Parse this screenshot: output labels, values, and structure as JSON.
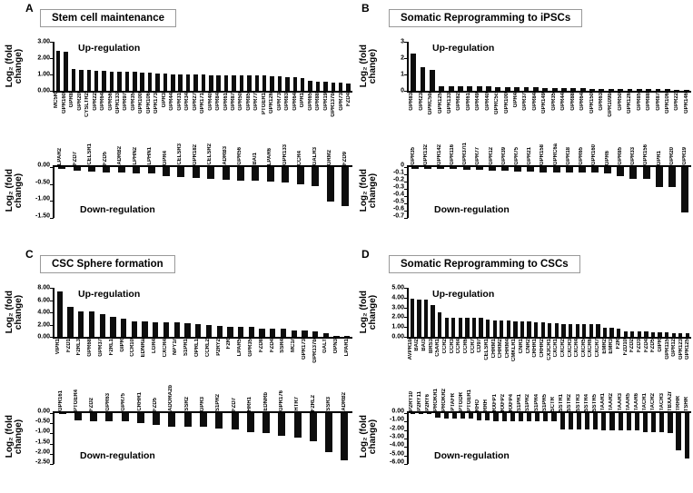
{
  "axis_label": "Log₂ (fold\nchange)",
  "panels": [
    {
      "letter": "A",
      "title": "Stem cell maintenance"
    },
    {
      "letter": "B",
      "title": "Somatic Reprogramming to iPSCs"
    },
    {
      "letter": "C",
      "title": "CSC Sphere formation"
    },
    {
      "letter": "D",
      "title": "Somatic Reprogramming to CSCs"
    }
  ],
  "chart_data": [
    {
      "id": "a-up",
      "panel": "A",
      "type": "bar",
      "direction": "up",
      "annotation": "Up-regulation",
      "ylabel": "Log₂ (fold change)",
      "y_ticks": [
        "3.00",
        "2.00",
        "1.00",
        "0.00"
      ],
      "ylim": [
        0,
        3
      ],
      "categories": [
        "MC5R",
        "GPR160",
        "GPR8",
        "GPR20",
        "CYSLTR2",
        "GPR22",
        "GPR64",
        "GPR56",
        "GPR133",
        "GPR97",
        "GPR35",
        "GPR100",
        "GPR106",
        "GPR173",
        "GPR3",
        "GPR44",
        "GPR31",
        "GPR34",
        "GPR27",
        "GPR171",
        "GPR40",
        "GPR84",
        "GPR61",
        "GPR87",
        "GPR50",
        "GPR85",
        "GPR77",
        "PTGER1",
        "GPR126",
        "GPR73",
        "GPR83",
        "GPR64",
        "GPR1",
        "GPR65",
        "GPR88",
        "GPR19",
        "GPR137b",
        "GPR73",
        "FZD4"
      ],
      "values": [
        2.45,
        2.4,
        1.35,
        1.3,
        1.27,
        1.22,
        1.2,
        1.18,
        1.17,
        1.16,
        1.15,
        1.13,
        1.1,
        1.08,
        1.03,
        1.02,
        1.01,
        1.0,
        0.99,
        0.98,
        0.97,
        0.97,
        0.96,
        0.96,
        0.95,
        0.94,
        0.93,
        0.92,
        0.91,
        0.9,
        0.86,
        0.82,
        0.78,
        0.62,
        0.57,
        0.56,
        0.52,
        0.48,
        0.42
      ]
    },
    {
      "id": "a-down",
      "panel": "A",
      "type": "bar",
      "direction": "down",
      "annotation": "Down-regulation",
      "ylabel": "Log₂ (fold change)",
      "y_ticks": [
        "0.00",
        "-0.50",
        "-1.00",
        "-1.50"
      ],
      "ylim": [
        -1.5,
        0
      ],
      "categories": [
        "LPAR2",
        "FZD7",
        "CELSR1",
        "FZD5",
        "ADRB2",
        "LPHN2",
        "LPHN1",
        "GPR4",
        "CELSR3",
        "GPR182",
        "CELSR2",
        "ADRB3",
        "GPR56",
        "BAI1",
        "LPAR6",
        "GPR133",
        "CCR4",
        "GALR3",
        "GRM2",
        "FZD9"
      ],
      "values": [
        -0.05,
        -0.1,
        -0.13,
        -0.15,
        -0.16,
        -0.18,
        -0.19,
        -0.26,
        -0.3,
        -0.33,
        -0.35,
        -0.38,
        -0.4,
        -0.4,
        -0.43,
        -0.45,
        -0.5,
        -0.57,
        -1.02,
        -1.15
      ]
    },
    {
      "id": "b-up",
      "panel": "B",
      "type": "bar",
      "direction": "up",
      "annotation": "Up-regulation",
      "ylabel": "Log₂ (fold change)",
      "y_ticks": [
        "3",
        "2",
        "1",
        "0"
      ],
      "ylim": [
        0,
        3
      ],
      "categories": [
        "GPR83",
        "GPR23",
        "GPRC5b",
        "GPR125",
        "GPR133",
        "GPR82",
        "GPR61",
        "GPR49",
        "GPR40",
        "GPRC5c",
        "GPR100",
        "GPR4",
        "GPR37",
        "GPR84",
        "GPR149",
        "GPR35",
        "GPR44",
        "GPR88",
        "GPR64",
        "GPR150",
        "GPR63",
        "GPR109b",
        "GPR50",
        "GPR126",
        "GPR85",
        "GPR88",
        "GPR87",
        "GPR106",
        "GPR22",
        "GPR146"
      ],
      "values": [
        2.3,
        1.45,
        1.3,
        0.3,
        0.3,
        0.29,
        0.28,
        0.27,
        0.25,
        0.24,
        0.23,
        0.22,
        0.21,
        0.2,
        0.19,
        0.19,
        0.18,
        0.18,
        0.15,
        0.13,
        0.12,
        0.12,
        0.11,
        0.11,
        0.1,
        0.1,
        0.09,
        0.09,
        0.08,
        0.08
      ]
    },
    {
      "id": "b-down",
      "panel": "B",
      "type": "bar",
      "direction": "down",
      "annotation": "Down-regulation",
      "ylabel": "Log₂ (fold change)",
      "y_ticks": [
        "0",
        "-0.1",
        "-0.2",
        "-0.3",
        "-0.4",
        "-0.5",
        "-0.6",
        "-0.7"
      ],
      "ylim": [
        -0.7,
        0
      ],
      "categories": [
        "GPR35",
        "GPR132",
        "GPR142",
        "GPR116",
        "GPR37l1",
        "GPR77",
        "GPR12",
        "GPR39",
        "GPR75",
        "GPR21",
        "GPR158",
        "GPRC6a",
        "GPR18",
        "GPR65",
        "GPR160",
        "GPR6",
        "GPR85",
        "GPR33",
        "GPR156",
        "GPR1",
        "GPR20",
        "GPR19"
      ],
      "values": [
        -0.02,
        -0.02,
        -0.03,
        -0.03,
        -0.04,
        -0.04,
        -0.05,
        -0.05,
        -0.06,
        -0.06,
        -0.07,
        -0.07,
        -0.08,
        -0.08,
        -0.08,
        -0.09,
        -0.13,
        -0.16,
        -0.16,
        -0.27,
        -0.28,
        -0.62
      ]
    },
    {
      "id": "c-up",
      "panel": "C",
      "type": "bar",
      "direction": "up",
      "annotation": "Up-regulation",
      "ylabel": "Log₂ (fold change)",
      "y_ticks": [
        "8.00",
        "6.00",
        "4.00",
        "2.00",
        "0.00"
      ],
      "ylim": [
        0,
        8
      ],
      "categories": [
        "VIPR1",
        "FZD1",
        "F2RL3",
        "GPR68",
        "GPR37",
        "F2RL1",
        "GIPR",
        "CCR10",
        "EDNRa",
        "LGR4",
        "CXCR4",
        "NPY1r",
        "S1PR1",
        "OPRL1",
        "CCRL2",
        "P2RY2",
        "F2R",
        "LPAR5",
        "GPR35",
        "FZD8",
        "FZD4",
        "SSR4",
        "MC1r",
        "GPR173",
        "GPR137b",
        "GALT",
        "OPN3",
        "LPAR1"
      ],
      "values": [
        7.4,
        4.9,
        4.2,
        4.1,
        3.75,
        3.2,
        2.9,
        2.5,
        2.45,
        2.4,
        2.35,
        2.3,
        2.25,
        2.1,
        1.9,
        1.8,
        1.65,
        1.65,
        1.6,
        1.4,
        1.35,
        1.3,
        1.1,
        1.05,
        0.95,
        0.55,
        0.15,
        0.1
      ]
    },
    {
      "id": "c-down",
      "panel": "C",
      "type": "bar",
      "direction": "down",
      "annotation": "Down-regulation",
      "ylabel": "Log₂ (fold change)",
      "y_ticks": [
        "0.00",
        "-0.50",
        "-1.00",
        "-1.50",
        "-2.00",
        "-2.50"
      ],
      "ylim": [
        -2.5,
        0
      ],
      "categories": [
        "GPR161",
        "PTGER4",
        "FZD2",
        "GPR63",
        "GPR75",
        "CRHR1",
        "FZD5",
        "ADORA2b",
        "SSR2",
        "GPR3",
        "S1PR2",
        "FZD7",
        "HRH1",
        "EDNRb",
        "GPR176",
        "HTR7",
        "F2RL2",
        "SSR3",
        "ADRB2"
      ],
      "values": [
        -0.05,
        -0.35,
        -0.38,
        -0.38,
        -0.42,
        -0.5,
        -0.6,
        -0.65,
        -0.65,
        -0.68,
        -0.75,
        -0.8,
        -0.95,
        -1.0,
        -1.12,
        -1.2,
        -1.4,
        -1.9,
        -2.3
      ]
    },
    {
      "id": "d-up",
      "panel": "D",
      "type": "bar",
      "direction": "up",
      "annotation": "Up-regulation",
      "ylabel": "Log₂ (fold change)",
      "y_ticks": [
        "5.00",
        "4.00",
        "3.00",
        "2.00",
        "1.00",
        "0.00"
      ],
      "ylim": [
        0,
        5
      ],
      "categories": [
        "AVPR1b",
        "BAI2",
        "BAI3",
        "BRS3",
        "C5AR1",
        "CCR2",
        "CCR3",
        "CCR4",
        "CCR6",
        "CCR7",
        "CD97",
        "CELSR1",
        "CHRM1",
        "CHRM2",
        "CHRM4",
        "CMKLR1",
        "CNR1",
        "CNR2",
        "CRHR1",
        "CRHR2",
        "CX3CR1",
        "CXCR1",
        "CXCR2",
        "CXCR3",
        "CXCR4",
        "CXCR5",
        "CXCR6",
        "CXCR7",
        "EMR2",
        "EMR3",
        "F2R",
        "FZD10",
        "FZD2",
        "FZD3",
        "FZD4",
        "FZD5",
        "GIPR",
        "GPR115",
        "GPR12",
        "GPR123",
        "GPR125"
      ],
      "values": [
        3.9,
        3.75,
        3.75,
        3.2,
        2.5,
        1.95,
        1.95,
        1.92,
        1.95,
        1.95,
        1.9,
        1.8,
        1.7,
        1.7,
        1.7,
        1.6,
        1.55,
        1.55,
        1.45,
        1.45,
        1.35,
        1.35,
        1.32,
        1.32,
        1.3,
        1.3,
        1.3,
        1.3,
        0.92,
        0.9,
        0.85,
        0.55,
        0.55,
        0.55,
        0.55,
        0.5,
        0.48,
        0.42,
        0.4,
        0.4,
        0.4
      ]
    },
    {
      "id": "d-down",
      "panel": "D",
      "type": "bar",
      "direction": "down",
      "annotation": "Down-regulation",
      "ylabel": "Log₂ (fold change)",
      "y_ticks": [
        "0.00",
        "-1.00",
        "-2.00",
        "-3.00",
        "-4.00",
        "-5.00",
        "-6.00"
      ],
      "ylim": [
        -6,
        0
      ],
      "categories": [
        "P2RY10",
        "P2RY11",
        "P2RY6",
        "PROKR1",
        "PROKR2",
        "PTAFR",
        "PTGDR",
        "PTGER1",
        "RHO",
        "RRH",
        "RXFP1",
        "RXFP2",
        "RXFP4",
        "S1PR1",
        "S1PR2",
        "S1PR4",
        "S1PR5",
        "SCTR",
        "SSTR1",
        "SSTR2",
        "SSTR3",
        "SSTR4",
        "SSTR5",
        "TAAR1",
        "TAAR2",
        "TAAR3",
        "TAAR5",
        "TAAR6",
        "TACR1",
        "TACR2",
        "TACR3",
        "TBXA2r",
        "TRHR",
        "TSHR"
      ],
      "values": [
        -0.1,
        -0.1,
        -0.12,
        -0.5,
        -0.6,
        -0.6,
        -0.62,
        -0.62,
        -0.85,
        -0.9,
        -0.92,
        -0.92,
        -0.92,
        -0.95,
        -0.95,
        -0.95,
        -0.95,
        -0.95,
        -1.9,
        -1.92,
        -1.92,
        -1.92,
        -1.92,
        -2.0,
        -2.0,
        -2.0,
        -2.0,
        -2.0,
        -2.2,
        -2.2,
        -2.3,
        -2.4,
        -4.4,
        -5.4
      ]
    }
  ]
}
